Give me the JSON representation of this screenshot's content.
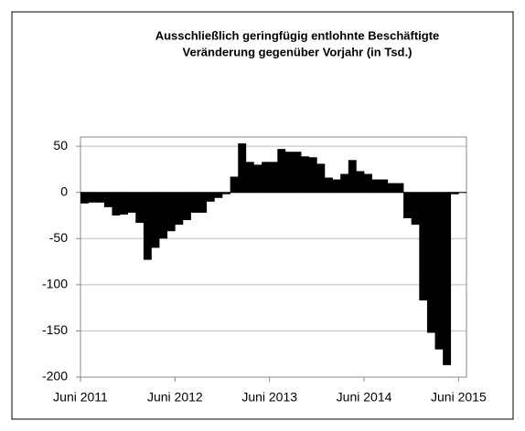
{
  "chart_data": {
    "type": "bar",
    "title": "Ausschließlich geringfügig entlohnte Beschäftigte",
    "subtitle": "Veränderung gegenüber Vorjahr (in Tsd.)",
    "categories": [
      "Juni 2011",
      null,
      null,
      null,
      null,
      null,
      null,
      null,
      null,
      null,
      null,
      null,
      "Juni 2012",
      null,
      null,
      null,
      null,
      null,
      null,
      null,
      null,
      null,
      null,
      null,
      "Juni 2013",
      null,
      null,
      null,
      null,
      null,
      null,
      null,
      null,
      null,
      null,
      null,
      "Juni 2014",
      null,
      null,
      null,
      null,
      null,
      null,
      null,
      null,
      null,
      null,
      null,
      "Juni 2015"
    ],
    "values": [
      -12,
      -11,
      -11,
      -16,
      -25,
      -24,
      -22,
      -33,
      -73,
      -60,
      -50,
      -42,
      -35,
      -30,
      -22,
      -22,
      -10,
      -6,
      -2,
      17,
      53,
      33,
      30,
      33,
      33,
      47,
      44,
      44,
      39,
      38,
      31,
      16,
      14,
      20,
      35,
      23,
      20,
      14,
      14,
      10,
      10,
      -28,
      -35,
      -117,
      -152,
      -170,
      -187,
      -2,
      null
    ],
    "color": "#000000",
    "ylim": [
      -200,
      60
    ],
    "yticks": [
      -200,
      -150,
      -100,
      -50,
      0,
      50
    ],
    "grid": true
  }
}
